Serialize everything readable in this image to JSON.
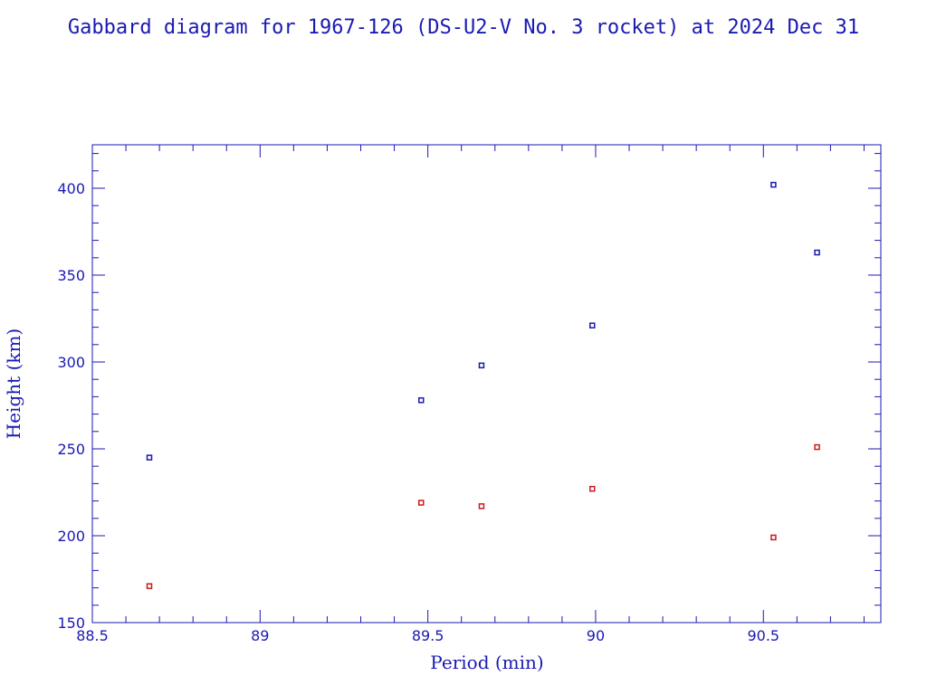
{
  "chart_data": {
    "type": "scatter",
    "title": "Gabbard diagram for 1967-126 (DS-U2-V No. 3 rocket) at 2024 Dec 31",
    "xlabel": "Period (min)",
    "ylabel": "Height (km)",
    "xlim": [
      88.5,
      90.85
    ],
    "ylim": [
      150,
      425
    ],
    "x_ticks": [
      88.5,
      89,
      89.5,
      90,
      90.5
    ],
    "x_tick_labels": [
      "88.5",
      "89",
      "89.5",
      "90",
      "90.5"
    ],
    "y_ticks": [
      150,
      200,
      250,
      300,
      350,
      400
    ],
    "y_tick_labels": [
      "150",
      "200",
      "250",
      "300",
      "350",
      "400"
    ],
    "grid": false,
    "legend": "none",
    "series": [
      {
        "color": "#1a1ab4",
        "marker": "square",
        "points": [
          {
            "x": 88.67,
            "y": 245
          },
          {
            "x": 89.48,
            "y": 278
          },
          {
            "x": 89.66,
            "y": 298
          },
          {
            "x": 89.99,
            "y": 321
          },
          {
            "x": 90.53,
            "y": 402
          },
          {
            "x": 90.66,
            "y": 363
          }
        ]
      },
      {
        "color": "#cc1a1a",
        "marker": "square",
        "points": [
          {
            "x": 88.67,
            "y": 171
          },
          {
            "x": 89.48,
            "y": 219
          },
          {
            "x": 89.66,
            "y": 217
          },
          {
            "x": 89.99,
            "y": 227
          },
          {
            "x": 90.53,
            "y": 199
          },
          {
            "x": 90.66,
            "y": 251
          }
        ]
      }
    ],
    "axis_color": "#1a1ab4"
  }
}
